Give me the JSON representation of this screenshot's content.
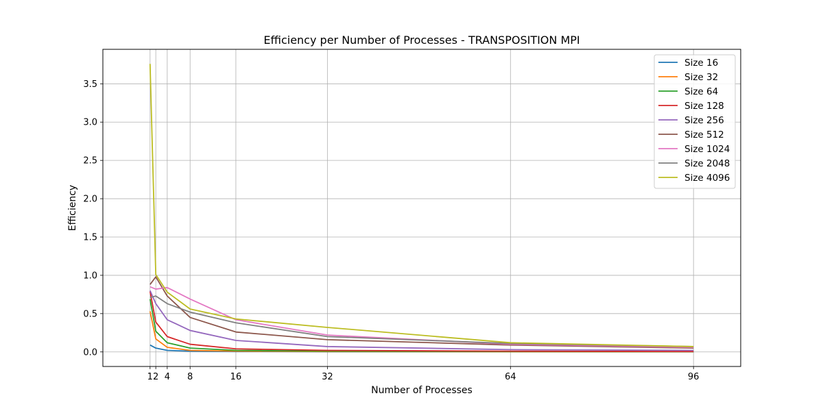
{
  "chart_data": {
    "type": "line",
    "title": "Efficiency per Number of Processes - TRANSPOSITION MPI",
    "xlabel": "Number of Processes",
    "ylabel": "Efficiency",
    "x": [
      1,
      2,
      4,
      8,
      16,
      32,
      64,
      96
    ],
    "x_ticks": [
      "1",
      "2",
      "4",
      "8",
      "16",
      "32",
      "64",
      "96"
    ],
    "y_ticks": [
      "0.0",
      "0.5",
      "1.0",
      "1.5",
      "2.0",
      "2.5",
      "3.0",
      "3.5"
    ],
    "xlim": [
      -7.25,
      104.25
    ],
    "ylim": [
      -0.19,
      3.95
    ],
    "grid": true,
    "legend_position": "top-right",
    "series": [
      {
        "name": "Size 16",
        "color": "#1f77b4",
        "values": [
          0.09,
          0.05,
          0.02,
          0.01,
          0.005,
          0.003,
          0.002,
          0.001
        ]
      },
      {
        "name": "Size 32",
        "color": "#ff7f0e",
        "values": [
          0.53,
          0.17,
          0.06,
          0.02,
          0.01,
          0.005,
          0.003,
          0.002
        ]
      },
      {
        "name": "Size 64",
        "color": "#2ca02c",
        "values": [
          0.69,
          0.27,
          0.12,
          0.05,
          0.02,
          0.01,
          0.005,
          0.003
        ]
      },
      {
        "name": "Size 128",
        "color": "#d62728",
        "values": [
          0.79,
          0.39,
          0.2,
          0.1,
          0.04,
          0.02,
          0.01,
          0.005
        ]
      },
      {
        "name": "Size 256",
        "color": "#9467bd",
        "values": [
          0.8,
          0.63,
          0.42,
          0.28,
          0.15,
          0.07,
          0.03,
          0.02
        ]
      },
      {
        "name": "Size 512",
        "color": "#8c564b",
        "values": [
          0.88,
          0.98,
          0.73,
          0.45,
          0.26,
          0.16,
          0.09,
          0.05
        ]
      },
      {
        "name": "Size 1024",
        "color": "#e377c2",
        "values": [
          0.85,
          0.82,
          0.84,
          0.69,
          0.42,
          0.22,
          0.1,
          0.06
        ]
      },
      {
        "name": "Size 2048",
        "color": "#7f7f7f",
        "values": [
          0.71,
          0.73,
          0.63,
          0.52,
          0.38,
          0.2,
          0.11,
          0.07
        ]
      },
      {
        "name": "Size 4096",
        "color": "#bcbd22",
        "values": [
          3.76,
          1.01,
          0.78,
          0.56,
          0.43,
          0.32,
          0.12,
          0.07
        ]
      }
    ]
  }
}
